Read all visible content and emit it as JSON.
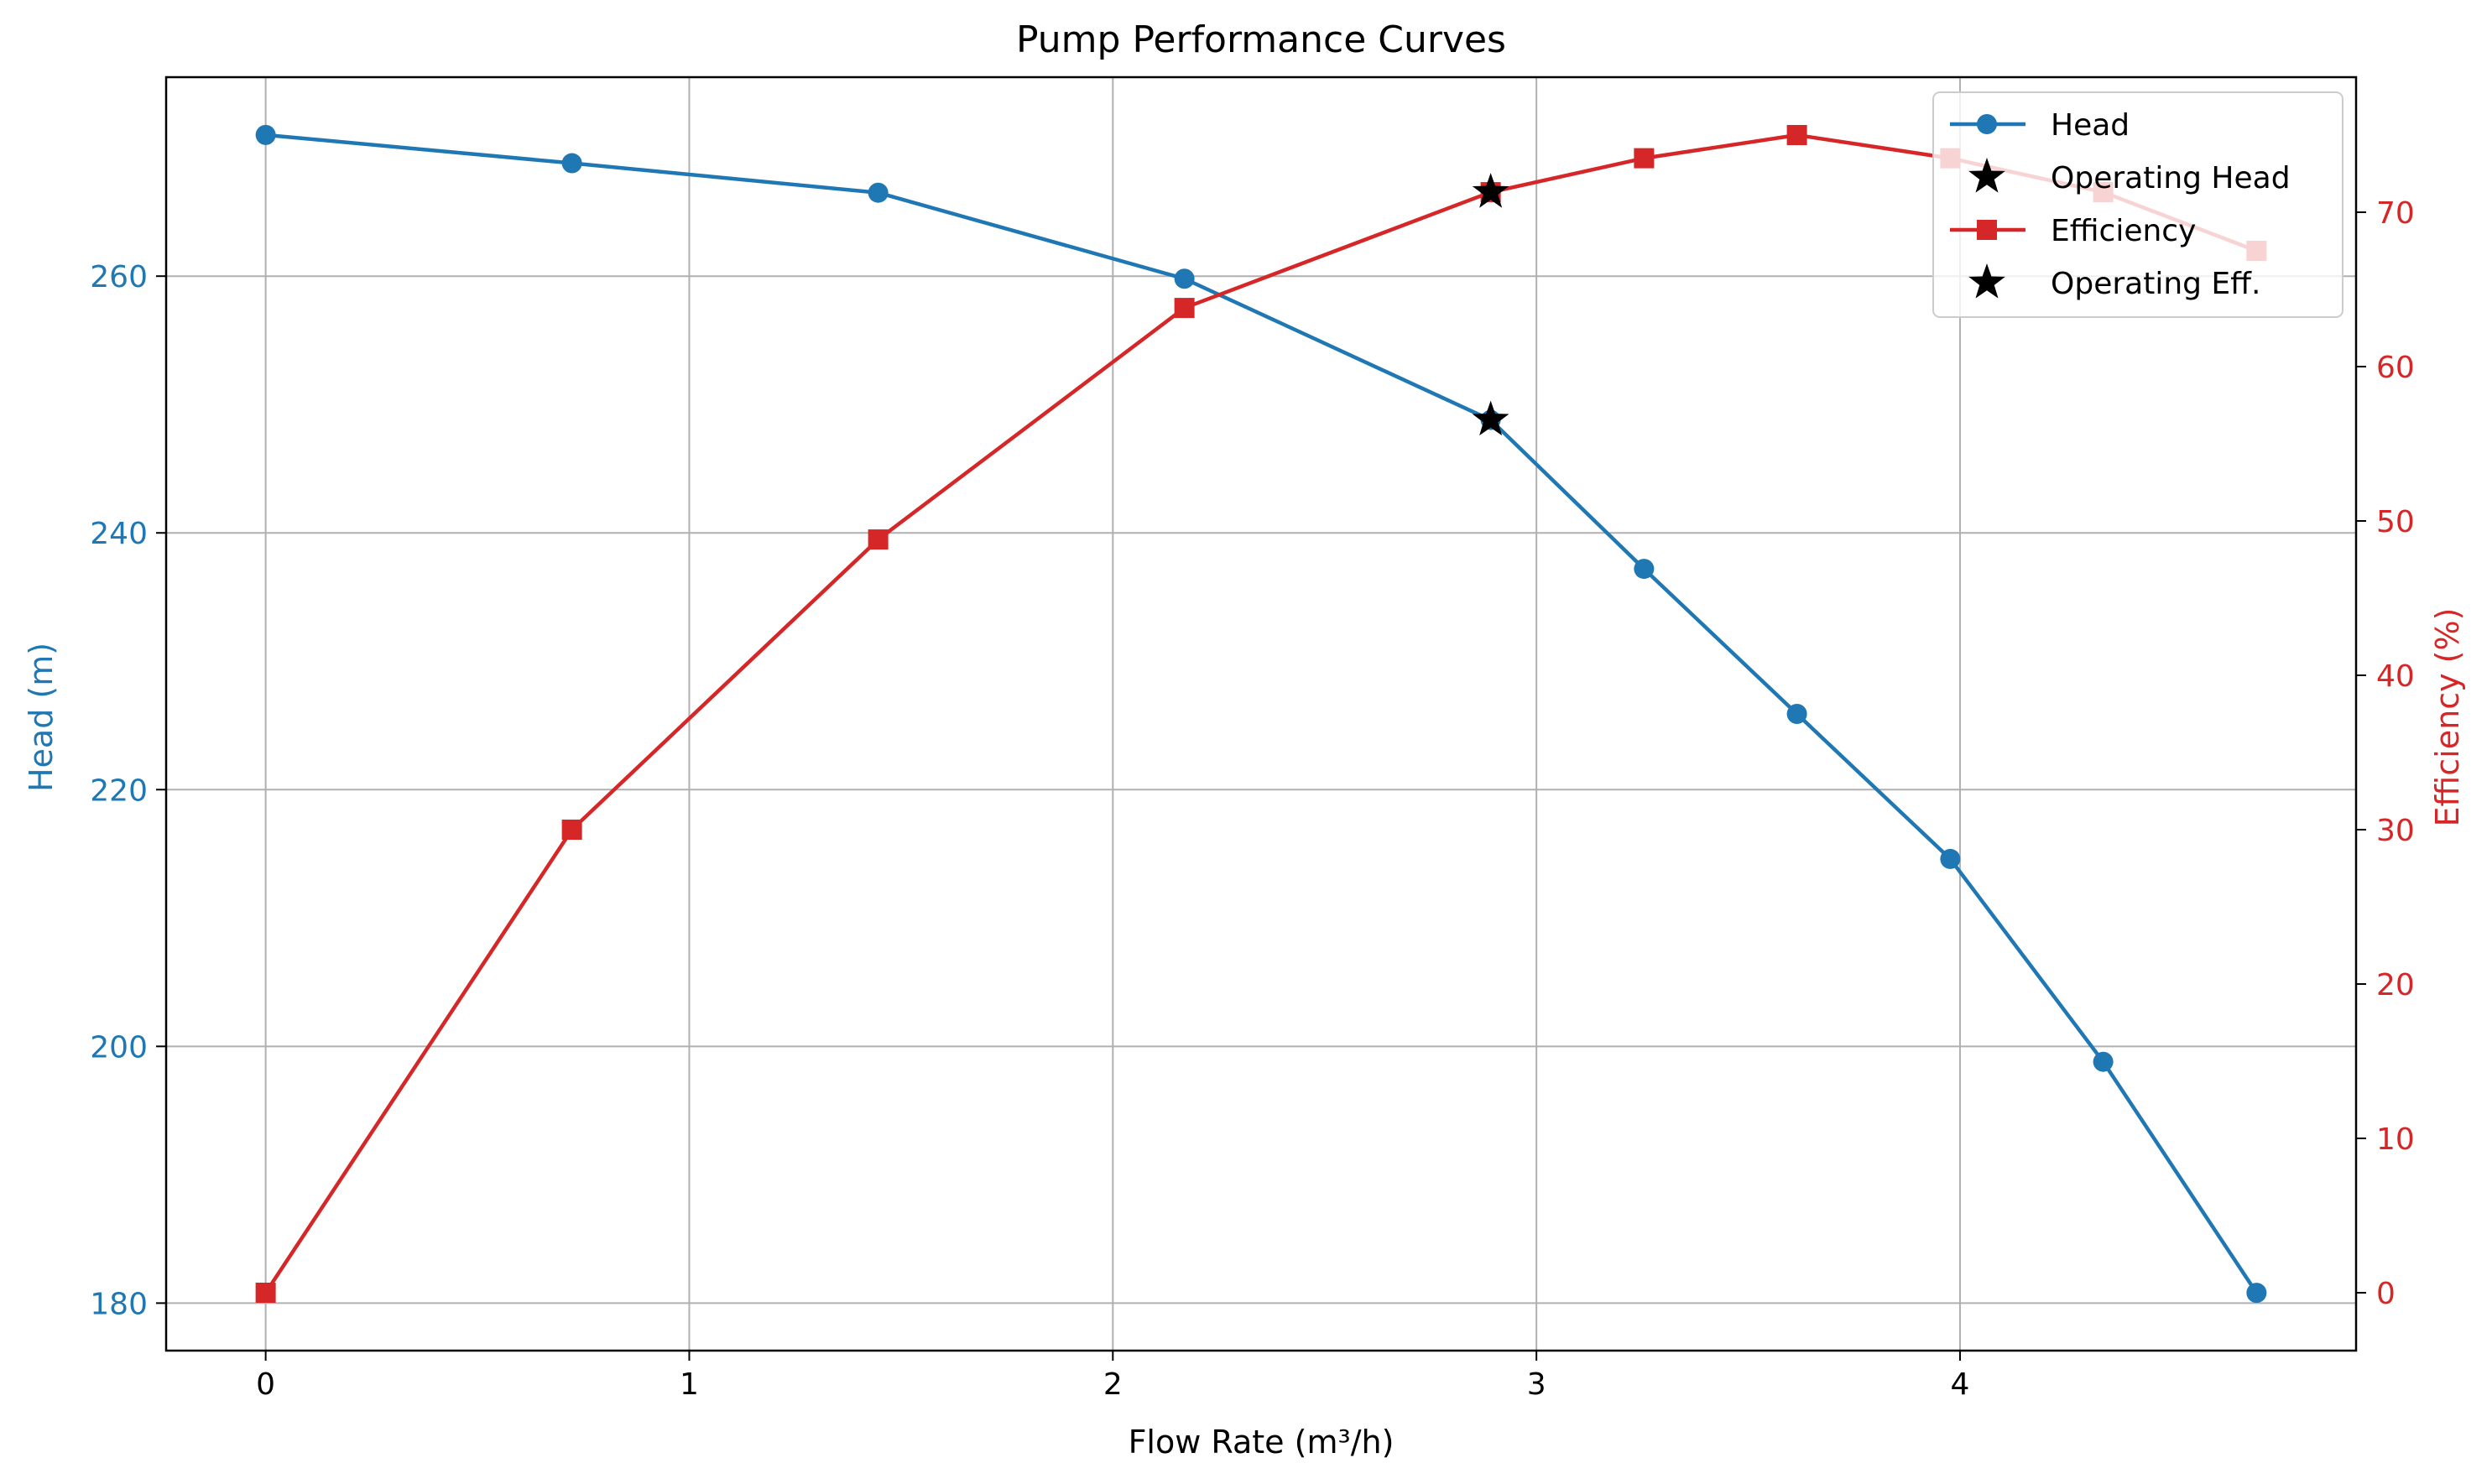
{
  "chart_data": {
    "type": "line",
    "title": "Pump Performance Curves",
    "xlabel": "Flow Rate (m³/h)",
    "ylabel_left": "Head (m)",
    "ylabel_right": "Efficiency (%)",
    "xlim": [
      -0.235,
      4.935
    ],
    "ylim_left": [
      176.3,
      275.5
    ],
    "ylim_right": [
      -3.75,
      78.75
    ],
    "x_ticks": [
      0,
      1,
      2,
      3,
      4
    ],
    "y_left_ticks": [
      180,
      200,
      220,
      240,
      260
    ],
    "y_right_ticks": [
      0,
      10,
      20,
      30,
      40,
      50,
      60,
      70
    ],
    "grid": true,
    "legend_position": "top-right",
    "colors": {
      "head": "#1f77b4",
      "efficiency": "#d62728",
      "operating": "#000000"
    },
    "series": [
      {
        "name": "Head",
        "axis": "left",
        "marker": "circle",
        "x": [
          0,
          0.723,
          1.446,
          2.169,
          2.892,
          3.254,
          3.615,
          3.977,
          4.338,
          4.7
        ],
        "values": [
          271.0,
          268.8,
          266.5,
          259.8,
          248.8,
          237.2,
          225.9,
          214.6,
          198.8,
          180.8
        ]
      },
      {
        "name": "Operating Head",
        "axis": "left",
        "marker": "star",
        "x": [
          2.892
        ],
        "values": [
          248.8
        ]
      },
      {
        "name": "Efficiency",
        "axis": "right",
        "marker": "square",
        "x": [
          0,
          0.723,
          1.446,
          2.169,
          2.892,
          3.254,
          3.615,
          3.977,
          4.338,
          4.7
        ],
        "values": [
          0.0,
          30.0,
          48.8,
          63.8,
          71.3,
          73.5,
          75.0,
          73.5,
          71.3,
          67.5
        ]
      },
      {
        "name": "Operating Eff.",
        "axis": "right",
        "marker": "star",
        "x": [
          2.892
        ],
        "values": [
          71.3
        ]
      }
    ]
  }
}
